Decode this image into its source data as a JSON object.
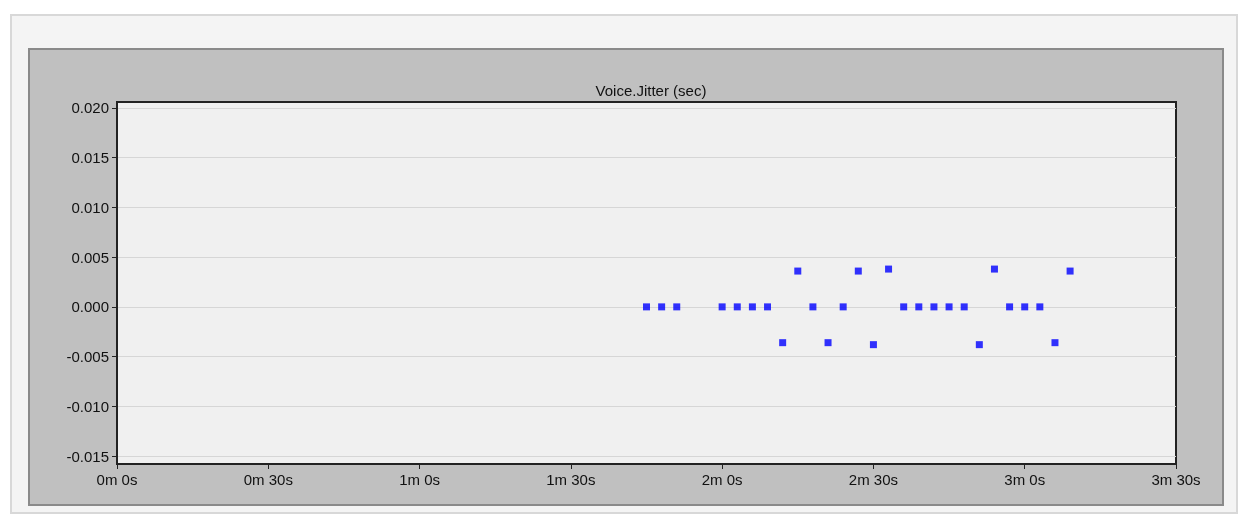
{
  "chart_data": {
    "type": "scatter",
    "title": "Voice.Jitter (sec)",
    "categories": [
      "0m 0s",
      null,
      null,
      null,
      null,
      null,
      null,
      null,
      null,
      null,
      "0m 30s",
      null,
      null,
      null,
      null,
      null,
      null,
      null,
      null,
      null,
      "1m 0s",
      null,
      null,
      null,
      null,
      null,
      null,
      null,
      null,
      null,
      "1m 30s",
      null,
      null,
      null,
      null,
      null,
      null,
      null,
      null,
      null,
      "2m 0s",
      null,
      null,
      null,
      null,
      null,
      null,
      null,
      null,
      null,
      "2m 30s",
      null,
      null,
      null,
      null,
      null,
      null,
      null,
      null,
      null,
      "3m 0s",
      null,
      null,
      null,
      null,
      null,
      null,
      null,
      null,
      null,
      "3m 30s"
    ],
    "values": [
      null,
      null,
      null,
      null,
      null,
      null,
      null,
      null,
      null,
      null,
      null,
      null,
      null,
      null,
      null,
      null,
      null,
      null,
      null,
      null,
      null,
      null,
      null,
      null,
      null,
      null,
      null,
      null,
      null,
      null,
      null,
      null,
      null,
      null,
      null,
      0,
      0,
      0,
      null,
      null,
      0,
      0,
      0,
      0,
      -0.0036,
      0.0036,
      0,
      -0.0036,
      0,
      0.0036,
      -0.0038,
      0.0038,
      0,
      0,
      0,
      0,
      0,
      -0.0038,
      0.0038,
      0,
      0,
      0,
      -0.0036,
      0.0036,
      null,
      null,
      null,
      null,
      null,
      null,
      null
    ],
    "color": "#0000ff",
    "marker": "square",
    "ylim": [
      -0.0158,
      0.0206
    ],
    "yticks": [
      {
        "value": -0.015,
        "label": "-0.015"
      },
      {
        "value": -0.01,
        "label": "-0.010"
      },
      {
        "value": -0.005,
        "label": "-0.005"
      },
      {
        "value": 0,
        "label": "0.000"
      },
      {
        "value": 0.005,
        "label": "0.005"
      },
      {
        "value": 0.01,
        "label": "0.010"
      },
      {
        "value": 0.015,
        "label": "0.015"
      },
      {
        "value": 0.02,
        "label": "0.020"
      }
    ],
    "grid": "y"
  }
}
